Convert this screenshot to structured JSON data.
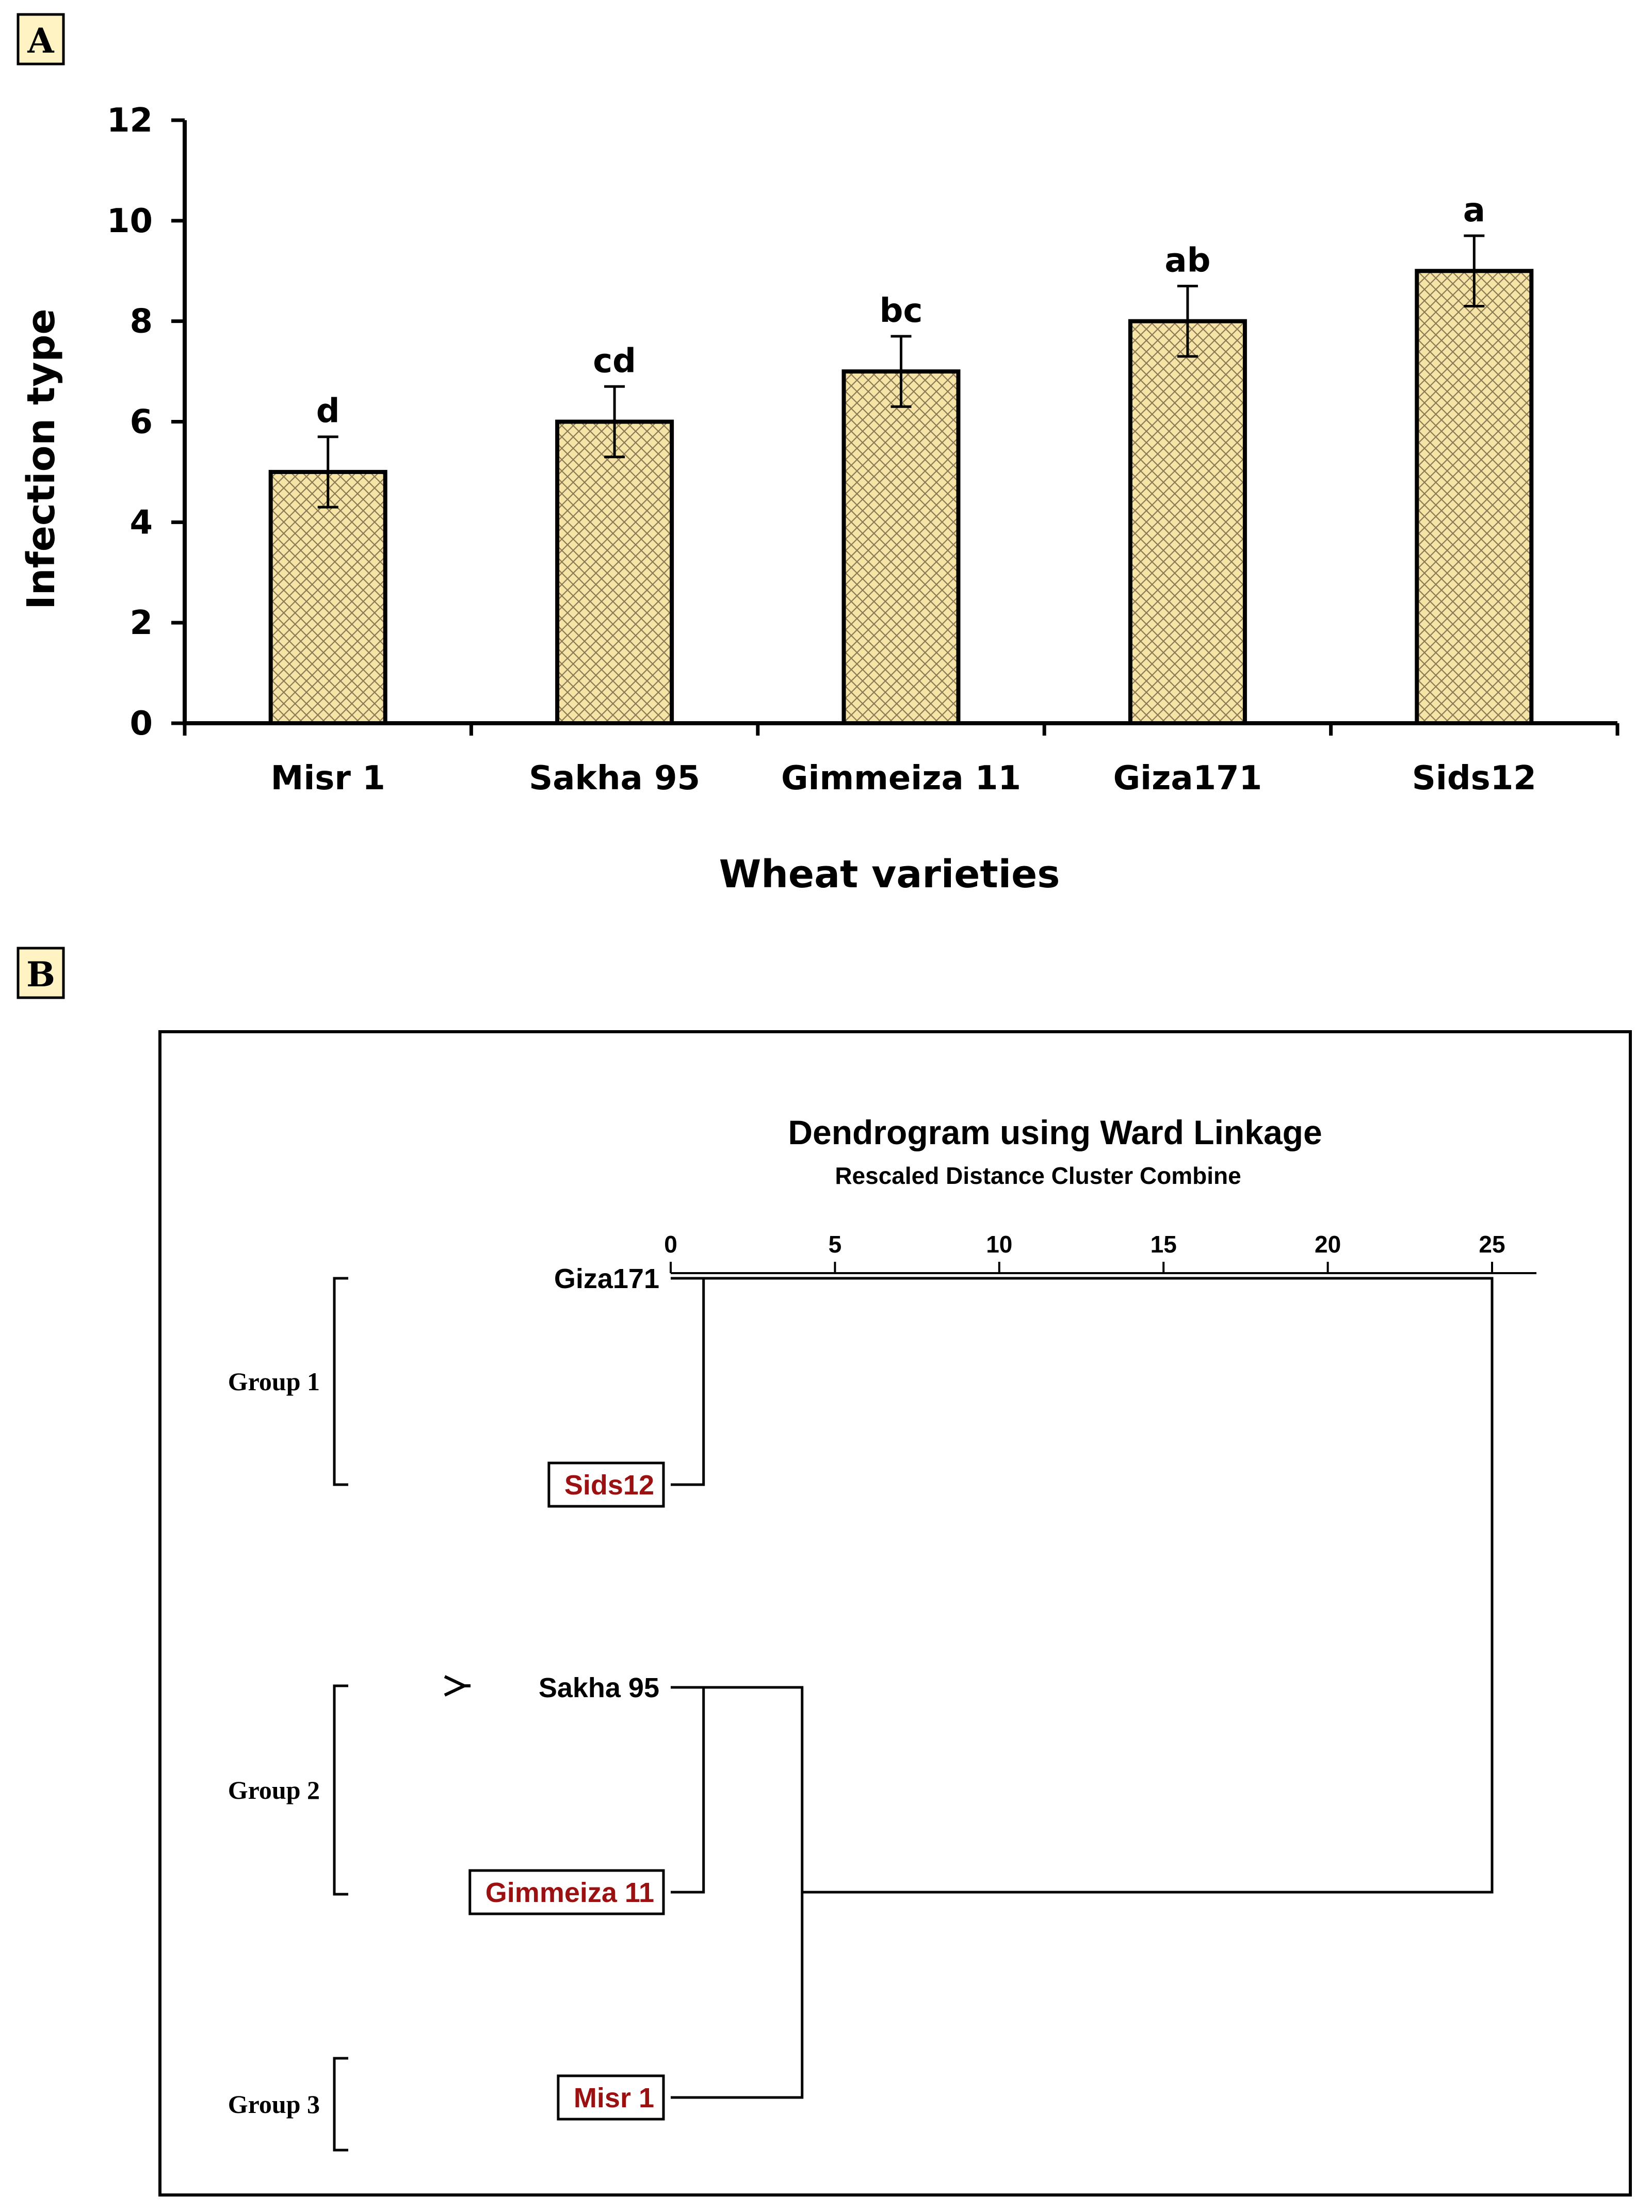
{
  "colors": {
    "bar_fill": "#f6e3a6",
    "bar_hatch": "#8a7a55",
    "panel_letter_bg": "#fff3c4",
    "highlight_text": "#9b1111"
  },
  "panels": {
    "a_label": "A",
    "b_label": "B"
  },
  "chart_data": [
    {
      "type": "bar",
      "categories": [
        "Misr 1",
        "Sakha 95",
        "Gimmeiza 11",
        "Giza171",
        "Sids12"
      ],
      "values": [
        5,
        6,
        7,
        8,
        9
      ],
      "error": [
        0.7,
        0.7,
        0.7,
        0.7,
        0.7
      ],
      "significance": [
        "d",
        "cd",
        "bc",
        "ab",
        "a"
      ],
      "xlabel": "Wheat varieties",
      "ylabel": "Infection type",
      "ylim": [
        0,
        12
      ],
      "yticks": [
        "0",
        "2",
        "4",
        "6",
        "8",
        "10",
        "12"
      ],
      "grid": false,
      "hatch": "crosshatch"
    },
    {
      "type": "dendrogram",
      "title": "Dendrogram using Ward Linkage",
      "subtitle": "Rescaled Distance Cluster Combine",
      "xticks": [
        "0",
        "5",
        "10",
        "15",
        "20",
        "25"
      ],
      "xlim": [
        0,
        25
      ],
      "leaves": [
        {
          "name": "Giza171",
          "boxed": false
        },
        {
          "name": "Sids12",
          "boxed": true
        },
        {
          "name": "Sakha 95",
          "boxed": false
        },
        {
          "name": "Gimmeiza 11",
          "boxed": true
        },
        {
          "name": "Misr 1",
          "boxed": true
        }
      ],
      "merges": [
        {
          "a": "Giza171",
          "b": "Sids12",
          "distance": 1
        },
        {
          "a": "Sakha 95",
          "b": "Gimmeiza 11",
          "distance": 1
        },
        {
          "a": "Sakha 95 + Gimmeiza 11",
          "b": "Misr 1",
          "distance": 4
        },
        {
          "a": "Giza171 + Sids12",
          "b": "Sakha 95 + Gimmeiza 11 + Misr 1",
          "distance": 25
        }
      ],
      "groups": [
        {
          "label": "Group 1",
          "members": [
            "Giza171",
            "Sids12"
          ]
        },
        {
          "label": "Group 2",
          "members": [
            "Sakha 95",
            "Gimmeiza 11"
          ]
        },
        {
          "label": "Group 3",
          "members": [
            "Misr 1"
          ]
        }
      ]
    }
  ]
}
